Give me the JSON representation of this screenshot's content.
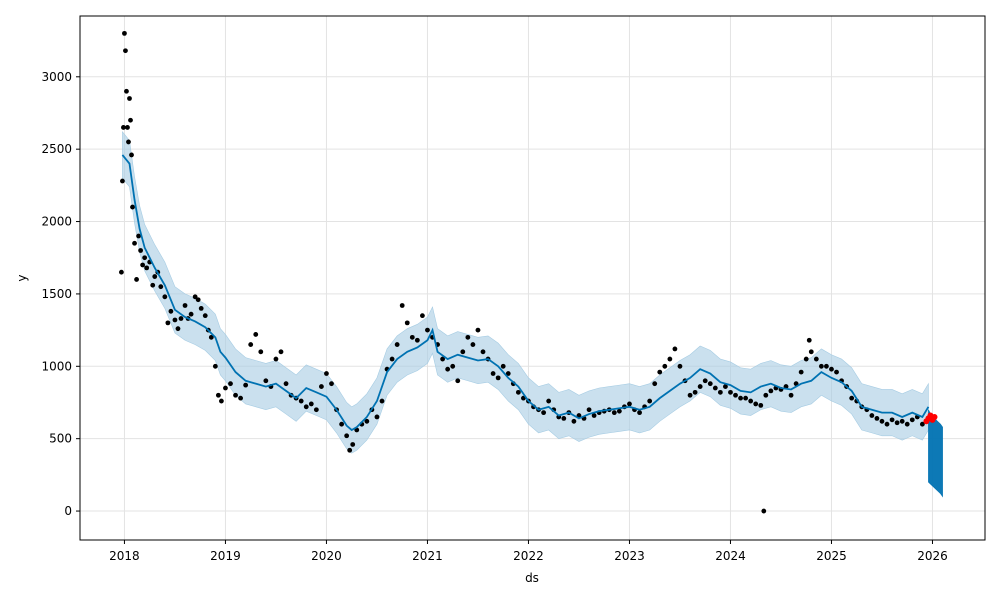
{
  "chart_data": {
    "type": "scatter",
    "xlabel": "ds",
    "ylabel": "y",
    "xlim": [
      2017.56,
      2026.52
    ],
    "ylim": [
      -200,
      3420
    ],
    "grid": true,
    "x_ticks": [
      2018,
      2019,
      2020,
      2021,
      2022,
      2023,
      2024,
      2025,
      2026
    ],
    "x_tick_labels": [
      "2018",
      "2019",
      "2020",
      "2021",
      "2022",
      "2023",
      "2024",
      "2025",
      "2026"
    ],
    "y_ticks": [
      0,
      500,
      1000,
      1500,
      2000,
      2500,
      3000
    ],
    "y_tick_labels": [
      "0",
      "500",
      "1000",
      "1500",
      "2000",
      "2500",
      "3000"
    ],
    "colors": {
      "observed": "#000000",
      "forecast": "#0072B2",
      "interval": "#a6cce3",
      "recent": "#ff0000"
    },
    "series": [
      {
        "kind": "forecast_line",
        "x": [
          2017.98,
          2018.05,
          2018.1,
          2018.15,
          2018.2,
          2018.3,
          2018.4,
          2018.5,
          2018.6,
          2018.7,
          2018.8,
          2018.9,
          2018.95,
          2019.0,
          2019.1,
          2019.2,
          2019.3,
          2019.4,
          2019.5,
          2019.6,
          2019.7,
          2019.8,
          2019.9,
          2020.0,
          2020.1,
          2020.2,
          2020.25,
          2020.3,
          2020.4,
          2020.5,
          2020.6,
          2020.7,
          2020.8,
          2020.9,
          2021.0,
          2021.05,
          2021.1,
          2021.2,
          2021.3,
          2021.4,
          2021.5,
          2021.6,
          2021.7,
          2021.8,
          2021.9,
          2022.0,
          2022.1,
          2022.2,
          2022.3,
          2022.4,
          2022.5,
          2022.6,
          2022.7,
          2022.8,
          2022.9,
          2023.0,
          2023.1,
          2023.2,
          2023.3,
          2023.4,
          2023.5,
          2023.6,
          2023.7,
          2023.8,
          2023.9,
          2024.0,
          2024.1,
          2024.2,
          2024.3,
          2024.4,
          2024.5,
          2024.6,
          2024.7,
          2024.8,
          2024.9,
          2025.0,
          2025.1,
          2025.2,
          2025.3,
          2025.4,
          2025.5,
          2025.6,
          2025.7,
          2025.8,
          2025.9,
          2025.96
        ],
        "values": [
          2460,
          2400,
          2150,
          1950,
          1820,
          1680,
          1560,
          1390,
          1340,
          1310,
          1270,
          1200,
          1100,
          1060,
          960,
          900,
          880,
          860,
          880,
          830,
          780,
          850,
          820,
          790,
          700,
          590,
          560,
          580,
          650,
          760,
          960,
          1050,
          1100,
          1130,
          1180,
          1250,
          1100,
          1050,
          1080,
          1060,
          1040,
          1050,
          1000,
          920,
          860,
          760,
          700,
          720,
          660,
          680,
          640,
          670,
          690,
          700,
          710,
          720,
          700,
          720,
          780,
          830,
          880,
          920,
          980,
          950,
          890,
          870,
          830,
          820,
          860,
          880,
          850,
          840,
          880,
          900,
          960,
          920,
          890,
          830,
          720,
          700,
          680,
          680,
          650,
          680,
          650,
          720
        ]
      },
      {
        "kind": "interval",
        "x": [
          2017.98,
          2018.05,
          2018.1,
          2018.15,
          2018.2,
          2018.3,
          2018.4,
          2018.5,
          2018.6,
          2018.7,
          2018.8,
          2018.9,
          2018.95,
          2019.0,
          2019.1,
          2019.2,
          2019.3,
          2019.4,
          2019.5,
          2019.6,
          2019.7,
          2019.8,
          2019.9,
          2020.0,
          2020.1,
          2020.2,
          2020.25,
          2020.3,
          2020.4,
          2020.5,
          2020.6,
          2020.7,
          2020.8,
          2020.9,
          2021.0,
          2021.05,
          2021.1,
          2021.2,
          2021.3,
          2021.4,
          2021.5,
          2021.6,
          2021.7,
          2021.8,
          2021.9,
          2022.0,
          2022.1,
          2022.2,
          2022.3,
          2022.4,
          2022.5,
          2022.6,
          2022.7,
          2022.8,
          2022.9,
          2023.0,
          2023.1,
          2023.2,
          2023.3,
          2023.4,
          2023.5,
          2023.6,
          2023.7,
          2023.8,
          2023.9,
          2024.0,
          2024.1,
          2024.2,
          2024.3,
          2024.4,
          2024.5,
          2024.6,
          2024.7,
          2024.8,
          2024.9,
          2025.0,
          2025.1,
          2025.2,
          2025.3,
          2025.4,
          2025.5,
          2025.6,
          2025.7,
          2025.8,
          2025.9,
          2025.96
        ],
        "upper": [
          2620,
          2560,
          2310,
          2110,
          1980,
          1840,
          1720,
          1550,
          1500,
          1470,
          1430,
          1360,
          1260,
          1220,
          1120,
          1060,
          1040,
          1020,
          1040,
          990,
          940,
          1010,
          980,
          950,
          860,
          750,
          720,
          740,
          810,
          920,
          1120,
          1210,
          1260,
          1290,
          1340,
          1410,
          1260,
          1210,
          1240,
          1220,
          1200,
          1210,
          1160,
          1080,
          1020,
          920,
          860,
          880,
          820,
          840,
          800,
          830,
          850,
          860,
          870,
          880,
          860,
          880,
          940,
          990,
          1040,
          1080,
          1140,
          1110,
          1050,
          1030,
          990,
          980,
          1020,
          1040,
          1010,
          1000,
          1040,
          1060,
          1120,
          1080,
          1050,
          990,
          880,
          860,
          840,
          840,
          810,
          840,
          810,
          880
        ],
        "lower": [
          2300,
          2240,
          1990,
          1790,
          1660,
          1520,
          1400,
          1230,
          1180,
          1150,
          1110,
          1040,
          940,
          900,
          800,
          740,
          720,
          700,
          720,
          670,
          620,
          690,
          660,
          630,
          540,
          430,
          400,
          420,
          490,
          600,
          800,
          890,
          940,
          970,
          1020,
          1090,
          940,
          890,
          920,
          900,
          880,
          890,
          840,
          760,
          700,
          600,
          540,
          560,
          500,
          520,
          480,
          510,
          530,
          540,
          550,
          560,
          540,
          560,
          620,
          670,
          720,
          760,
          820,
          790,
          730,
          710,
          670,
          660,
          700,
          720,
          690,
          680,
          720,
          740,
          800,
          760,
          730,
          670,
          560,
          540,
          520,
          520,
          490,
          520,
          490,
          560
        ]
      },
      {
        "kind": "observed_points",
        "x": [
          2017.97,
          2017.98,
          2017.99,
          2018.0,
          2018.01,
          2018.02,
          2018.03,
          2018.04,
          2018.05,
          2018.06,
          2018.07,
          2018.08,
          2018.1,
          2018.12,
          2018.14,
          2018.16,
          2018.18,
          2018.2,
          2018.22,
          2018.25,
          2018.28,
          2018.3,
          2018.33,
          2018.36,
          2018.4,
          2018.43,
          2018.46,
          2018.5,
          2018.53,
          2018.56,
          2018.6,
          2018.63,
          2018.66,
          2018.7,
          2018.73,
          2018.76,
          2018.8,
          2018.83,
          2018.86,
          2018.9,
          2018.93,
          2018.96,
          2019.0,
          2019.05,
          2019.1,
          2019.15,
          2019.2,
          2019.25,
          2019.3,
          2019.35,
          2019.4,
          2019.45,
          2019.5,
          2019.55,
          2019.6,
          2019.65,
          2019.7,
          2019.75,
          2019.8,
          2019.85,
          2019.9,
          2019.95,
          2020.0,
          2020.05,
          2020.1,
          2020.15,
          2020.2,
          2020.23,
          2020.26,
          2020.3,
          2020.35,
          2020.4,
          2020.45,
          2020.5,
          2020.55,
          2020.6,
          2020.65,
          2020.7,
          2020.75,
          2020.8,
          2020.85,
          2020.9,
          2020.95,
          2021.0,
          2021.05,
          2021.1,
          2021.15,
          2021.2,
          2021.25,
          2021.3,
          2021.35,
          2021.4,
          2021.45,
          2021.5,
          2021.55,
          2021.6,
          2021.65,
          2021.7,
          2021.75,
          2021.8,
          2021.85,
          2021.9,
          2021.95,
          2022.0,
          2022.05,
          2022.1,
          2022.15,
          2022.2,
          2022.25,
          2022.3,
          2022.35,
          2022.4,
          2022.45,
          2022.5,
          2022.55,
          2022.6,
          2022.65,
          2022.7,
          2022.75,
          2022.8,
          2022.85,
          2022.9,
          2022.95,
          2023.0,
          2023.05,
          2023.1,
          2023.15,
          2023.2,
          2023.25,
          2023.3,
          2023.35,
          2023.4,
          2023.45,
          2023.5,
          2023.55,
          2023.6,
          2023.65,
          2023.7,
          2023.75,
          2023.8,
          2023.85,
          2023.9,
          2023.95,
          2024.0,
          2024.05,
          2024.1,
          2024.15,
          2024.2,
          2024.25,
          2024.3,
          2024.33,
          2024.35,
          2024.4,
          2024.45,
          2024.5,
          2024.55,
          2024.6,
          2024.65,
          2024.7,
          2024.75,
          2024.78,
          2024.8,
          2024.85,
          2024.9,
          2024.95,
          2025.0,
          2025.05,
          2025.1,
          2025.15,
          2025.2,
          2025.25,
          2025.3,
          2025.35,
          2025.4,
          2025.45,
          2025.5,
          2025.55,
          2025.6,
          2025.65,
          2025.7,
          2025.75,
          2025.8,
          2025.85,
          2025.9
        ],
        "values": [
          1650,
          2280,
          2650,
          3300,
          3180,
          2900,
          2650,
          2550,
          2850,
          2700,
          2460,
          2100,
          1850,
          1600,
          1900,
          1800,
          1700,
          1750,
          1680,
          1720,
          1560,
          1620,
          1650,
          1550,
          1480,
          1300,
          1380,
          1320,
          1260,
          1330,
          1420,
          1330,
          1360,
          1480,
          1460,
          1400,
          1350,
          1250,
          1200,
          1000,
          800,
          760,
          850,
          880,
          800,
          780,
          870,
          1150,
          1220,
          1100,
          900,
          860,
          1050,
          1100,
          880,
          800,
          780,
          760,
          720,
          740,
          700,
          860,
          950,
          880,
          700,
          600,
          520,
          420,
          460,
          560,
          600,
          620,
          700,
          650,
          760,
          980,
          1050,
          1150,
          1420,
          1300,
          1200,
          1180,
          1350,
          1250,
          1200,
          1150,
          1050,
          980,
          1000,
          900,
          1100,
          1200,
          1150,
          1250,
          1100,
          1050,
          950,
          920,
          1000,
          950,
          880,
          820,
          780,
          760,
          720,
          700,
          680,
          760,
          700,
          650,
          640,
          680,
          620,
          660,
          640,
          700,
          660,
          680,
          690,
          700,
          680,
          690,
          720,
          740,
          700,
          680,
          720,
          760,
          880,
          960,
          1000,
          1050,
          1120,
          1000,
          900,
          800,
          820,
          860,
          900,
          880,
          850,
          820,
          860,
          820,
          800,
          780,
          780,
          760,
          740,
          730,
          0,
          800,
          830,
          850,
          840,
          860,
          800,
          880,
          960,
          1050,
          1180,
          1100,
          1050,
          1000,
          1000,
          980,
          960,
          900,
          860,
          780,
          760,
          720,
          700,
          660,
          640,
          620,
          600,
          630,
          610,
          620,
          600,
          630,
          650,
          600
        ]
      },
      {
        "kind": "recent_points",
        "x": [
          2025.94,
          2025.96,
          2025.98,
          2026.0,
          2026.02
        ],
        "values": [
          620,
          640,
          660,
          630,
          650
        ]
      },
      {
        "kind": "forecast_band",
        "x": [
          2025.96,
          2025.99,
          2026.02,
          2026.05,
          2026.08,
          2026.1
        ],
        "upper": [
          700,
          660,
          640,
          620,
          600,
          580
        ],
        "lower": [
          200,
          180,
          160,
          140,
          120,
          100
        ]
      }
    ]
  }
}
